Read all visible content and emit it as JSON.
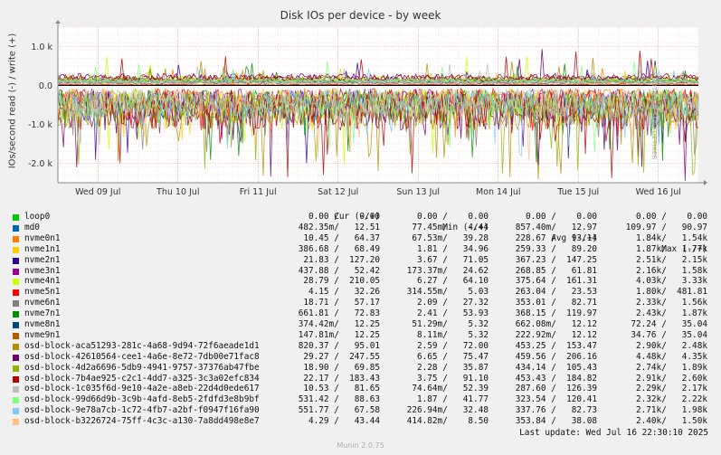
{
  "chart_data": {
    "type": "area",
    "title": "Disk IOs per device - by week",
    "ylabel": "IOs/second read (-) / write (+)",
    "ylim": [
      -2500,
      1500
    ],
    "yticks": [
      {
        "value": 1000,
        "label": "1.0 k"
      },
      {
        "value": 0,
        "label": "0.0"
      },
      {
        "value": -1000,
        "label": "-1.0 k"
      },
      {
        "value": -2000,
        "label": "-2.0 k"
      }
    ],
    "xlim": [
      0,
      8
    ],
    "xticks": [
      {
        "value": 0.5,
        "label": "Wed 09 Jul"
      },
      {
        "value": 1.5,
        "label": "Thu 10 Jul"
      },
      {
        "value": 2.5,
        "label": "Fri 11 Jul"
      },
      {
        "value": 3.5,
        "label": "Sat 12 Jul"
      },
      {
        "value": 4.5,
        "label": "Sun 13 Jul"
      },
      {
        "value": 5.5,
        "label": "Mon 14 Jul"
      },
      {
        "value": 6.5,
        "label": "Tue 15 Jul"
      },
      {
        "value": 7.5,
        "label": "Wed 16 Jul"
      }
    ],
    "grid": true,
    "legend_position": "bottom",
    "header": {
      "cur": "Cur (-/+)",
      "min": "Min (-/+)",
      "avg": "Avg (-/+)",
      "max": "Max (-/+)"
    },
    "series": [
      {
        "name": "loop0",
        "color": "#00cc00",
        "cur": "0.00 /    0.00",
        "min": "0.00 /    0.00",
        "avg": "0.00 /    0.00",
        "max": "0.00 /    0.00"
      },
      {
        "name": "md0",
        "color": "#0066b3",
        "cur": "482.35m/   12.51",
        "min": "77.45m/    4.44",
        "avg": "857.40m/   12.97",
        "max": "109.97 /   90.97"
      },
      {
        "name": "nvme0n1",
        "color": "#ff8000",
        "cur": "10.45 /   64.37",
        "min": "67.53m/   39.28",
        "avg": "228.67 /   93.14",
        "max": "1.84k/   1.54k"
      },
      {
        "name": "nvme1n1",
        "color": "#ffcc00",
        "cur": "386.68 /   68.49",
        "min": "1.81 /   34.96",
        "avg": "259.33 /   89.20",
        "max": "1.87k/   1.77k"
      },
      {
        "name": "nvme2n1",
        "color": "#330099",
        "cur": "21.83 /  127.20",
        "min": "3.67 /   71.05",
        "avg": "367.23 /  147.25",
        "max": "2.51k/   2.15k"
      },
      {
        "name": "nvme3n1",
        "color": "#990099",
        "cur": "437.88 /   52.42",
        "min": "173.37m/   24.62",
        "avg": "268.85 /   61.81",
        "max": "2.16k/   1.58k"
      },
      {
        "name": "nvme4n1",
        "color": "#ccff00",
        "cur": "28.79 /  210.05",
        "min": "6.27 /   64.10",
        "avg": "375.64 /  161.31",
        "max": "4.03k/   3.33k"
      },
      {
        "name": "nvme5n1",
        "color": "#ff0000",
        "cur": "4.15 /   32.26",
        "min": "314.55m/    5.03",
        "avg": "263.04 /   23.53",
        "max": "1.80k/  481.81"
      },
      {
        "name": "nvme6n1",
        "color": "#808080",
        "cur": "18.71 /   57.17",
        "min": "2.09 /   27.32",
        "avg": "353.01 /   82.71",
        "max": "2.33k/   1.56k"
      },
      {
        "name": "nvme7n1",
        "color": "#008f00",
        "cur": "661.81 /   72.83",
        "min": "2.41 /   53.93",
        "avg": "368.15 /  119.97",
        "max": "2.43k/   1.87k"
      },
      {
        "name": "nvme8n1",
        "color": "#00487d",
        "cur": "374.42m/   12.25",
        "min": "51.29m/    5.32",
        "avg": "662.08m/   12.12",
        "max": "72.24 /   35.04"
      },
      {
        "name": "nvme9n1",
        "color": "#b35a00",
        "cur": "147.81m/   12.25",
        "min": "8.11m/    5.32",
        "avg": "222.92m/   12.12",
        "max": "34.76 /   35.04"
      },
      {
        "name": "osd-block-aca51293-281c-4a68-9d94-72f6aeade1d1",
        "color": "#b38f00",
        "cur": "820.37 /   95.01",
        "min": "2.59 /   72.00",
        "avg": "453.25 /  153.47",
        "max": "2.90k/   2.48k"
      },
      {
        "name": "osd-block-42610564-cee1-4a6e-8e72-7db00e71fac8",
        "color": "#6b006b",
        "cur": "29.27 /  247.55",
        "min": "6.65 /   75.47",
        "avg": "459.56 /  206.16",
        "max": "4.48k/   4.35k"
      },
      {
        "name": "osd-block-4d2a6696-5db9-4941-9757-37376ab47fbe",
        "color": "#8fb300",
        "cur": "18.90 /   69.85",
        "min": "2.28 /   35.87",
        "avg": "434.14 /  105.43",
        "max": "2.74k/   1.89k"
      },
      {
        "name": "osd-block-7b4ae925-c2c1-4dd7-a325-3c3a02efc834",
        "color": "#b30000",
        "cur": "22.17 /  183.43",
        "min": "3.75 /   91.10",
        "avg": "453.43 /  184.82",
        "max": "2.91k/   2.60k"
      },
      {
        "name": "osd-block-1c035f6d-9e10-4a2e-a8eb-22d4d0ede617",
        "color": "#bebebe",
        "cur": "10.53 /   81.65",
        "min": "74.64m/   52.39",
        "avg": "287.60 /  126.39",
        "max": "2.29k/   2.17k"
      },
      {
        "name": "osd-block-99d66d9b-3c9b-4afd-8eb5-2fdfd3e8b9bf",
        "color": "#80ff80",
        "cur": "531.42 /   88.63",
        "min": "1.87 /   41.77",
        "avg": "323.54 /  120.41",
        "max": "2.32k/   2.22k"
      },
      {
        "name": "osd-block-9e78a7cb-1c72-4fb7-a2bf-f0947f16fa90",
        "color": "#80c9ff",
        "cur": "551.77 /   67.58",
        "min": "226.94m/   32.48",
        "avg": "337.76 /   82.73",
        "max": "2.71k/   1.98k"
      },
      {
        "name": "osd-block-b3226724-75ff-4c3c-a130-7a8dd498e8e7",
        "color": "#ffc080",
        "cur": "4.29 /   43.44",
        "min": "414.82m/    8.50",
        "avg": "353.84 /   38.08",
        "max": "2.40k/   1.50k"
      }
    ],
    "last_update": "Last update: Wed Jul 16 22:30:10 2025"
  },
  "side_label": "RRDTOOL / TOBI OETIKER",
  "footer": "Munin 2.0.75"
}
